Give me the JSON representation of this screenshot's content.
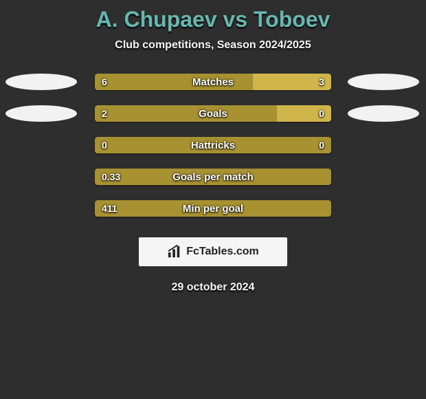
{
  "title": "A. Chupaev vs Toboev",
  "subtitle": "Club competitions, Season 2024/2025",
  "brand": "FcTables.com",
  "date_text": "29 october 2024",
  "colors": {
    "left": "#a79131",
    "right": "#d0b64a",
    "badge": "#f2f2f2",
    "bg": "#2e2e2e",
    "title": "#67b7b0",
    "text": "#ffffff"
  },
  "stats": [
    {
      "label": "Matches",
      "left_val": "6",
      "right_val": "3",
      "left_pct": 67,
      "right_pct": 33,
      "show_left_badge": true,
      "show_right_badge": true
    },
    {
      "label": "Goals",
      "left_val": "2",
      "right_val": "0",
      "left_pct": 77,
      "right_pct": 23,
      "show_left_badge": true,
      "show_right_badge": true
    },
    {
      "label": "Hattricks",
      "left_val": "0",
      "right_val": "0",
      "left_pct": 100,
      "right_pct": 0,
      "show_left_badge": false,
      "show_right_badge": false
    },
    {
      "label": "Goals per match",
      "left_val": "0.33",
      "right_val": "",
      "left_pct": 100,
      "right_pct": 0,
      "show_left_badge": false,
      "show_right_badge": false
    },
    {
      "label": "Min per goal",
      "left_val": "411",
      "right_val": "",
      "left_pct": 100,
      "right_pct": 0,
      "show_left_badge": false,
      "show_right_badge": false
    }
  ]
}
